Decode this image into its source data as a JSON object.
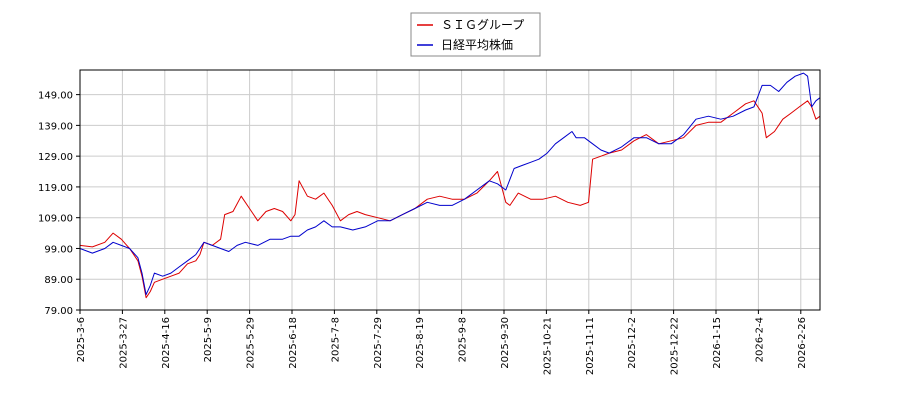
{
  "chart_data": {
    "type": "line",
    "title": "",
    "xlabel": "",
    "ylabel": "",
    "ylim": [
      79,
      157
    ],
    "y_ticks": [
      "79.00",
      "89.00",
      "99.00",
      "109.00",
      "119.00",
      "129.00",
      "139.00",
      "149.00"
    ],
    "x_ticks": [
      "2025-3-6",
      "2025-3-27",
      "2025-4-16",
      "2025-5-9",
      "2025-5-29",
      "2025-6-18",
      "2025-7-8",
      "2025-7-29",
      "2025-8-19",
      "2025-9-8",
      "2025-9-30",
      "2025-10-21",
      "2025-11-11",
      "2025-12-2",
      "2025-12-22",
      "2026-1-15",
      "2026-2-4",
      "2026-2-26"
    ],
    "grid": true,
    "legend_position": "top-center",
    "series": [
      {
        "name": "ＳＩＧグループ",
        "color": "#dd0000",
        "values": [
          [
            0,
            100
          ],
          [
            3,
            99.5
          ],
          [
            6,
            101
          ],
          [
            8,
            104
          ],
          [
            10,
            102
          ],
          [
            12,
            99
          ],
          [
            14,
            95
          ],
          [
            15,
            90
          ],
          [
            16,
            83
          ],
          [
            17,
            85
          ],
          [
            18,
            88
          ],
          [
            20,
            89
          ],
          [
            22,
            90
          ],
          [
            24,
            91
          ],
          [
            26,
            94
          ],
          [
            28,
            95
          ],
          [
            29,
            97
          ],
          [
            30,
            101
          ],
          [
            32,
            100
          ],
          [
            34,
            102
          ],
          [
            35,
            110
          ],
          [
            37,
            111
          ],
          [
            39,
            116
          ],
          [
            41,
            112
          ],
          [
            43,
            108
          ],
          [
            45,
            111
          ],
          [
            47,
            112
          ],
          [
            49,
            111
          ],
          [
            51,
            108
          ],
          [
            52,
            110
          ],
          [
            53,
            121
          ],
          [
            55,
            116
          ],
          [
            57,
            115
          ],
          [
            59,
            117
          ],
          [
            61,
            113
          ],
          [
            63,
            108
          ],
          [
            65,
            110
          ],
          [
            67,
            111
          ],
          [
            69,
            110
          ],
          [
            72,
            109
          ],
          [
            75,
            108
          ],
          [
            78,
            110
          ],
          [
            81,
            112
          ],
          [
            84,
            115
          ],
          [
            87,
            116
          ],
          [
            90,
            115
          ],
          [
            93,
            115
          ],
          [
            96,
            117
          ],
          [
            99,
            121
          ],
          [
            101,
            124
          ],
          [
            103,
            114
          ],
          [
            104,
            113
          ],
          [
            106,
            117
          ],
          [
            109,
            115
          ],
          [
            112,
            115
          ],
          [
            115,
            116
          ],
          [
            118,
            114
          ],
          [
            121,
            113
          ],
          [
            123,
            114
          ],
          [
            124,
            128
          ],
          [
            126,
            129
          ],
          [
            128,
            130
          ],
          [
            131,
            131
          ],
          [
            134,
            134
          ],
          [
            137,
            136
          ],
          [
            140,
            133
          ],
          [
            143,
            134
          ],
          [
            146,
            135
          ],
          [
            149,
            139
          ],
          [
            152,
            140
          ],
          [
            155,
            140
          ],
          [
            158,
            143
          ],
          [
            161,
            146
          ],
          [
            163,
            147
          ],
          [
            165,
            143
          ],
          [
            166,
            135
          ],
          [
            168,
            137
          ],
          [
            170,
            141
          ],
          [
            172,
            143
          ],
          [
            174,
            145
          ],
          [
            176,
            147
          ],
          [
            177,
            145
          ],
          [
            178,
            141
          ],
          [
            179,
            142
          ]
        ]
      },
      {
        "name": "日経平均株価",
        "color": "#0000cc",
        "values": [
          [
            0,
            99
          ],
          [
            3,
            97.5
          ],
          [
            6,
            99
          ],
          [
            8,
            101
          ],
          [
            10,
            100
          ],
          [
            12,
            99
          ],
          [
            14,
            96
          ],
          [
            15,
            91
          ],
          [
            16,
            84
          ],
          [
            17,
            87
          ],
          [
            18,
            91
          ],
          [
            20,
            90
          ],
          [
            22,
            91
          ],
          [
            24,
            93
          ],
          [
            26,
            95
          ],
          [
            28,
            97
          ],
          [
            30,
            101
          ],
          [
            32,
            100
          ],
          [
            34,
            99
          ],
          [
            36,
            98
          ],
          [
            38,
            100
          ],
          [
            40,
            101
          ],
          [
            43,
            100
          ],
          [
            46,
            102
          ],
          [
            49,
            102
          ],
          [
            51,
            103
          ],
          [
            53,
            103
          ],
          [
            55,
            105
          ],
          [
            57,
            106
          ],
          [
            59,
            108
          ],
          [
            61,
            106
          ],
          [
            63,
            106
          ],
          [
            66,
            105
          ],
          [
            69,
            106
          ],
          [
            72,
            108
          ],
          [
            75,
            108
          ],
          [
            78,
            110
          ],
          [
            81,
            112
          ],
          [
            84,
            114
          ],
          [
            87,
            113
          ],
          [
            90,
            113
          ],
          [
            93,
            115
          ],
          [
            96,
            118
          ],
          [
            99,
            121
          ],
          [
            101,
            120
          ],
          [
            103,
            118
          ],
          [
            105,
            125
          ],
          [
            107,
            126
          ],
          [
            109,
            127
          ],
          [
            111,
            128
          ],
          [
            113,
            130
          ],
          [
            115,
            133
          ],
          [
            117,
            135
          ],
          [
            119,
            137
          ],
          [
            120,
            135
          ],
          [
            122,
            135
          ],
          [
            124,
            133
          ],
          [
            126,
            131
          ],
          [
            128,
            130
          ],
          [
            131,
            132
          ],
          [
            134,
            135
          ],
          [
            137,
            135
          ],
          [
            140,
            133
          ],
          [
            143,
            133
          ],
          [
            146,
            136
          ],
          [
            149,
            141
          ],
          [
            152,
            142
          ],
          [
            155,
            141
          ],
          [
            158,
            142
          ],
          [
            161,
            144
          ],
          [
            163,
            145
          ],
          [
            165,
            152
          ],
          [
            167,
            152
          ],
          [
            169,
            150
          ],
          [
            171,
            153
          ],
          [
            173,
            155
          ],
          [
            175,
            156
          ],
          [
            176,
            155
          ],
          [
            177,
            145
          ],
          [
            178,
            147
          ],
          [
            179,
            148
          ]
        ]
      }
    ]
  }
}
